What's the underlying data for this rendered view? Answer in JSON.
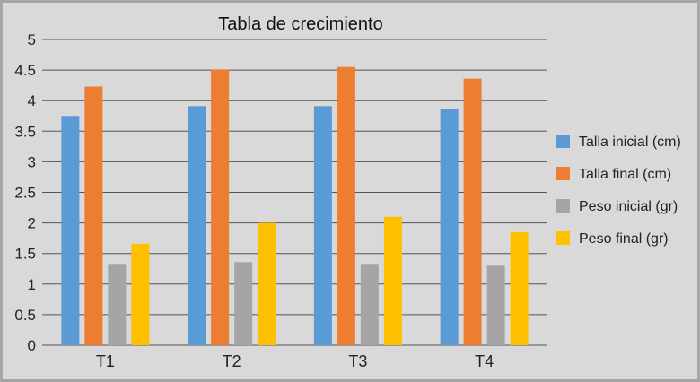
{
  "chart_data": {
    "type": "bar",
    "title": "Tabla de crecimiento",
    "xlabel": "",
    "ylabel": "",
    "categories": [
      "T1",
      "T2",
      "T3",
      "T4"
    ],
    "ylim": [
      0,
      5
    ],
    "yticks": [
      "0",
      "0.5",
      "1",
      "1.5",
      "2",
      "2.5",
      "3",
      "3.5",
      "4",
      "4.5",
      "5"
    ],
    "grid": true,
    "legend_position": "right",
    "series": [
      {
        "name": "Talla inicial (cm)",
        "color": "#5b9bd5",
        "values": [
          3.75,
          3.91,
          3.91,
          3.87
        ]
      },
      {
        "name": "Talla final (cm)",
        "color": "#ed7d31",
        "values": [
          4.23,
          4.51,
          4.55,
          4.36
        ]
      },
      {
        "name": "Peso inicial (gr)",
        "color": "#a5a5a5",
        "values": [
          1.33,
          1.36,
          1.33,
          1.3
        ]
      },
      {
        "name": "Peso final (gr)",
        "color": "#ffc000",
        "values": [
          1.66,
          2.0,
          2.1,
          1.85
        ]
      }
    ]
  }
}
